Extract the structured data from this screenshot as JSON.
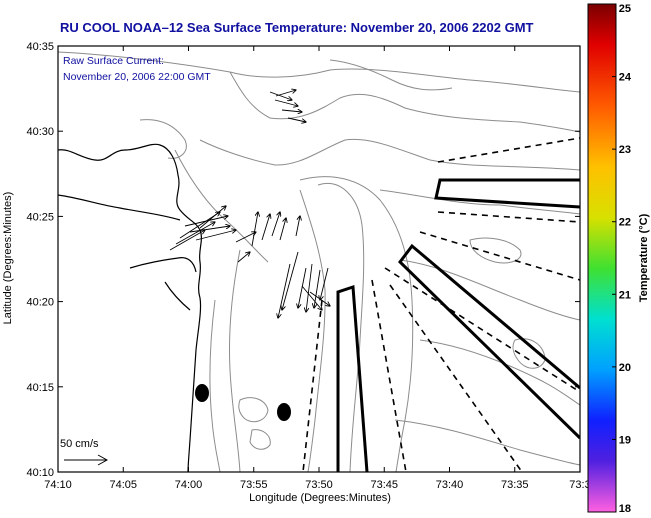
{
  "title": "RU COOL  NOAA–12  Sea Surface Temperature:  November 20, 2006 2202 GMT",
  "current_legend": {
    "line1": "Raw Surface Current:",
    "line2": "November 20, 2006 22:00 GMT"
  },
  "scale_label": "50 cm/s",
  "x_axis": {
    "label": "Longitude (Degrees:Minutes)",
    "ticks": [
      "74:10",
      "74:05",
      "74:00",
      "73:55",
      "73:50",
      "73:45",
      "73:40",
      "73:35",
      "73:3"
    ]
  },
  "y_axis": {
    "label": "Latitude (Degrees:Minutes)",
    "ticks": [
      "40:35",
      "40:30",
      "40:25",
      "40:20",
      "40:15",
      "40:10"
    ]
  },
  "colorbar": {
    "label": "Temperature (°C)",
    "ticks": [
      "25",
      "24",
      "23",
      "22",
      "21",
      "20",
      "19",
      "18"
    ],
    "range": [
      18,
      25
    ]
  },
  "colors": {
    "title": "#1010a0",
    "contour": "#8c8c8c",
    "frame": "#000000"
  }
}
